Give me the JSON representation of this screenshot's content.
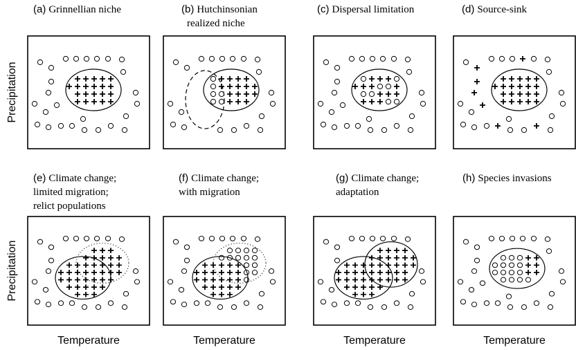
{
  "panels": [
    {
      "label": "(a)",
      "title_lines": [
        "Grinnellian niche"
      ]
    },
    {
      "label": "(b)",
      "title_lines": [
        "Hutchinsonian",
        "realized niche"
      ]
    },
    {
      "label": "(c)",
      "title_lines": [
        "Dispersal limitation"
      ]
    },
    {
      "label": "(d)",
      "title_lines": [
        "Source-sink"
      ]
    },
    {
      "label": "(e)",
      "title_lines": [
        "Climate change;",
        "limited migration;",
        "relict populations"
      ]
    },
    {
      "label": "(f)",
      "title_lines": [
        "Climate change;",
        "with migration"
      ]
    },
    {
      "label": "(g)",
      "title_lines": [
        "Climate change;",
        "adaptation"
      ]
    },
    {
      "label": "(h)",
      "title_lines": [
        "Species invasions"
      ]
    }
  ],
  "y_axis_labels": [
    "Precipitation",
    "Precipitation"
  ],
  "x_axis_labels": [
    "Temperature",
    "Temperature",
    "Temperature",
    "Temperature"
  ]
}
